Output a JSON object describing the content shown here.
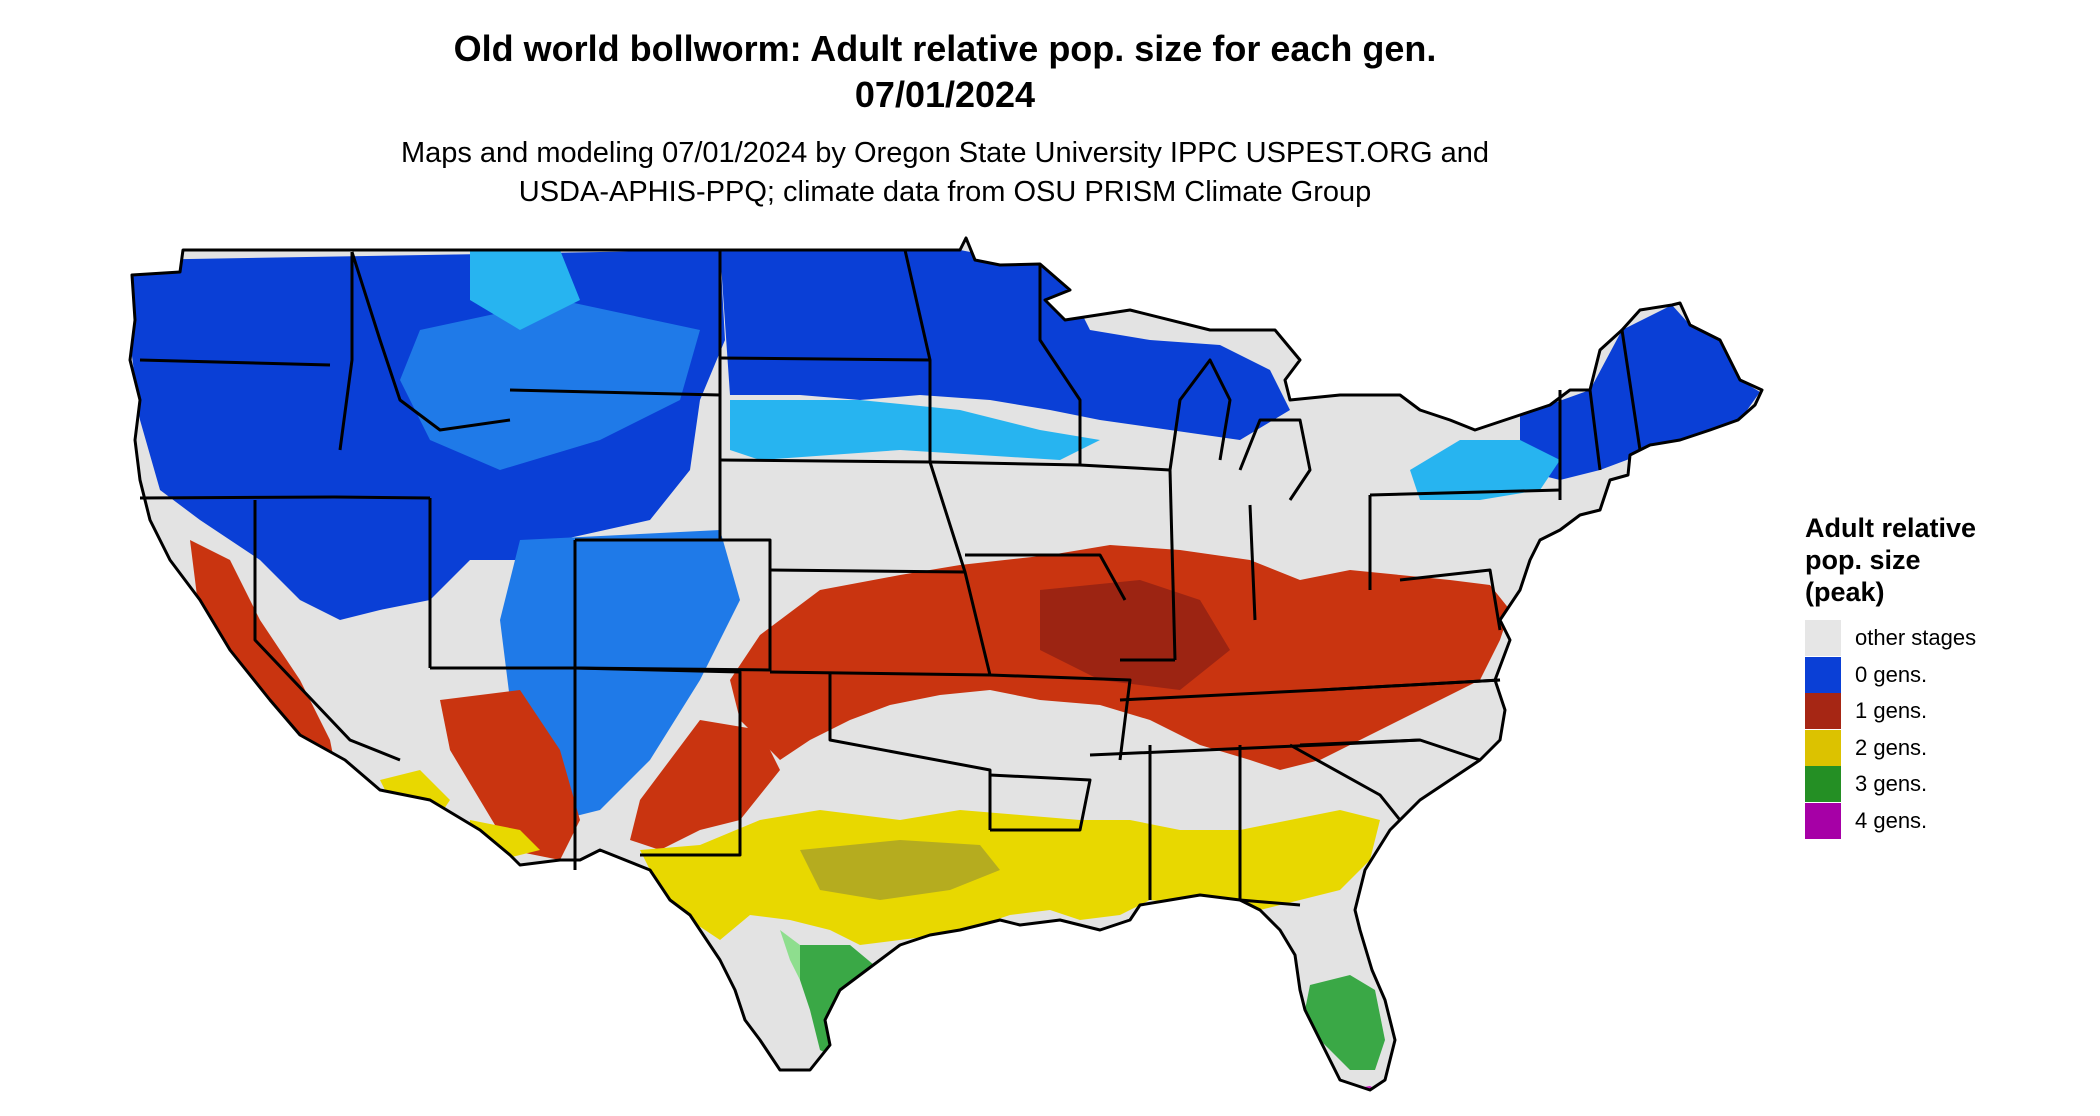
{
  "title": {
    "line1": "Old world bollworm: Adult relative pop. size for each gen.",
    "line2": "07/01/2024"
  },
  "subtitle": {
    "line1": "Maps and modeling 07/01/2024 by Oregon State University IPPC USPEST.ORG and",
    "line2": "USDA-APHIS-PPQ; climate data from OSU PRISM Climate Group"
  },
  "legend": {
    "title_lines": [
      "Adult relative",
      "pop. size",
      "(peak)"
    ],
    "items": [
      {
        "label": "other stages",
        "color": "#e6e6e6"
      },
      {
        "label": "0 gens.",
        "color": "#0a3fd6"
      },
      {
        "label": "1 gens.",
        "color": "#a62614"
      },
      {
        "label": "2 gens.",
        "color": "#dcc200"
      },
      {
        "label": "3 gens.",
        "color": "#248f24"
      },
      {
        "label": "4 gens.",
        "color": "#a600a6"
      }
    ]
  },
  "map": {
    "base_color": "#e3e3e3",
    "border_color": "#000000",
    "zone_colors": {
      "gen0_dark": "#0a3fd6",
      "gen0_mid": "#1f7ae8",
      "gen0_light": "#27b4f0",
      "gen1": "#c93410",
      "gen1_dark": "#9c2412",
      "gen2": "#e8d800",
      "gen2_dark": "#b5ac1f",
      "gen3": "#3aa846",
      "gen3_light": "#8ede8e",
      "gen4": "#cc1fc4"
    }
  }
}
